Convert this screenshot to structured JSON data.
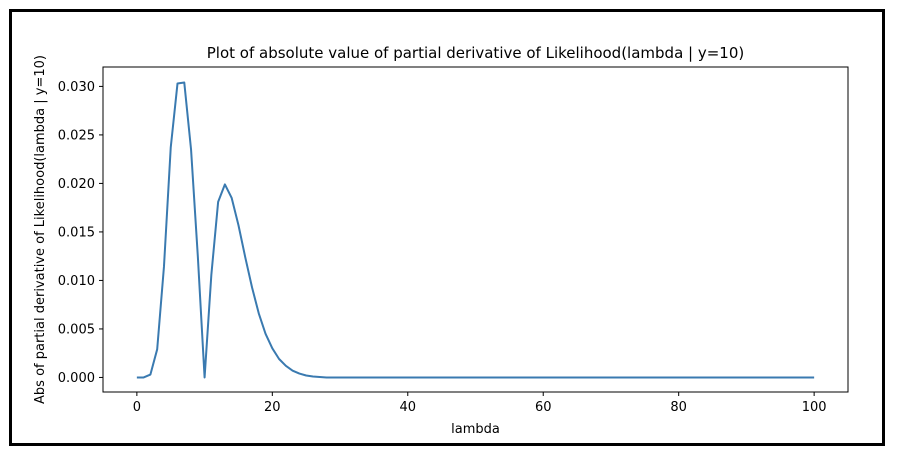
{
  "chart_data": {
    "type": "line",
    "title": "Plot of absolute value of partial derivative of Likelihood(lambda | y=10)",
    "xlabel": "lambda",
    "ylabel": "Abs of partial derivative of Likelihood(lambda | y=10)",
    "xlim": [
      -5,
      105
    ],
    "ylim": [
      -0.0015,
      0.032
    ],
    "xticks": [
      0,
      20,
      40,
      60,
      80,
      100
    ],
    "yticks": [
      0.0,
      0.005,
      0.01,
      0.015,
      0.02,
      0.025,
      0.03
    ],
    "xtick_labels": [
      "0",
      "20",
      "40",
      "60",
      "80",
      "100"
    ],
    "ytick_labels": [
      "0.000",
      "0.005",
      "0.010",
      "0.015",
      "0.020",
      "0.025",
      "0.030"
    ],
    "grid": false,
    "legend": "none",
    "series": [
      {
        "color": "#3a7ab0",
        "x": [
          0,
          1,
          2,
          3,
          4,
          5,
          6,
          7,
          8,
          9,
          10,
          11,
          12,
          13,
          14,
          15,
          16,
          17,
          18,
          19,
          20,
          21,
          22,
          23,
          24,
          25,
          26,
          28,
          30,
          35,
          40,
          50,
          60,
          70,
          80,
          90,
          100
        ],
        "y": [
          0.0,
          0.0,
          0.0003,
          0.0029,
          0.0114,
          0.0237,
          0.0303,
          0.0304,
          0.0235,
          0.0125,
          0.0,
          0.0106,
          0.0181,
          0.0199,
          0.0185,
          0.0157,
          0.0124,
          0.0093,
          0.0066,
          0.0045,
          0.003,
          0.0019,
          0.0012,
          0.0007,
          0.0004,
          0.0002,
          0.0001,
          0.0,
          0.0,
          0.0,
          0.0,
          0.0,
          0.0,
          0.0,
          0.0,
          0.0,
          0.0
        ]
      }
    ]
  }
}
